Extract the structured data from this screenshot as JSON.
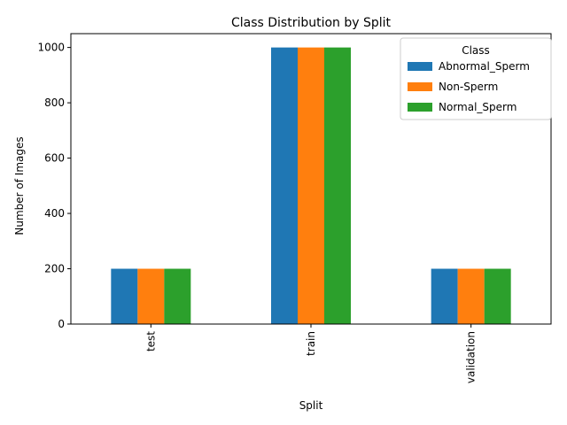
{
  "chart_data": {
    "type": "bar",
    "title": "Class Distribution by Split",
    "xlabel": "Split",
    "ylabel": "Number of Images",
    "categories": [
      "test",
      "train",
      "validation"
    ],
    "series": [
      {
        "name": "Abnormal_Sperm",
        "values": [
          200,
          1000,
          200
        ],
        "color": "#1f77b4"
      },
      {
        "name": "Non-Sperm",
        "values": [
          200,
          1000,
          200
        ],
        "color": "#ff7f0e"
      },
      {
        "name": "Normal_Sperm",
        "values": [
          200,
          1000,
          200
        ],
        "color": "#2ca02c"
      }
    ],
    "ylim": [
      0,
      1050
    ],
    "yticks": [
      0,
      200,
      400,
      600,
      800,
      1000
    ],
    "grid": false,
    "legend": {
      "title": "Class",
      "placement": "top-right"
    }
  }
}
